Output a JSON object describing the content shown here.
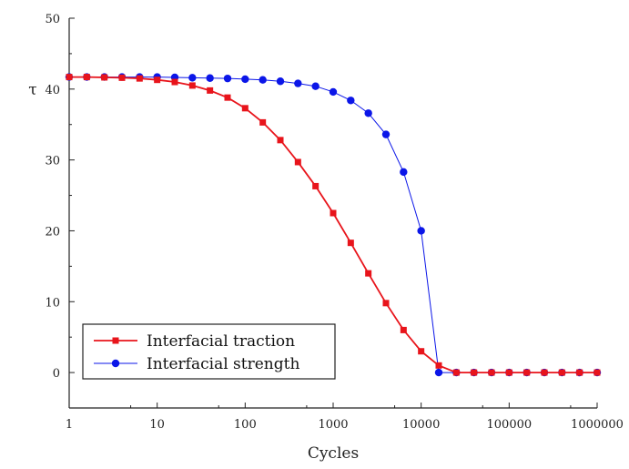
{
  "chart_data": {
    "type": "line",
    "xlabel": "Cycles",
    "ylabel": "τ",
    "x_scale": "log",
    "xlim": [
      1,
      1000000
    ],
    "ylim": [
      -5,
      50
    ],
    "x_ticks": [
      1,
      10,
      100,
      1000,
      10000,
      100000,
      1000000
    ],
    "x_tick_labels": [
      "1",
      "10",
      "100",
      "1000",
      "10000",
      "100000",
      "1000000"
    ],
    "y_ticks": [
      0,
      10,
      20,
      30,
      40,
      50
    ],
    "y_tick_labels": [
      "0",
      "10",
      "20",
      "30",
      "40",
      "50"
    ],
    "grid": false,
    "legend_position": "bottom-left",
    "series": [
      {
        "name": "Interfacial traction",
        "color": "#e8141b",
        "marker": "square",
        "x": [
          1,
          1.585,
          2.512,
          3.981,
          6.31,
          10,
          15.85,
          25.12,
          39.81,
          63.1,
          100,
          158.5,
          251.2,
          398.1,
          631,
          1000,
          1585,
          2512,
          3981,
          6310,
          10000,
          15850,
          25120,
          39810,
          63100,
          100000,
          158500,
          251200,
          398100,
          631000,
          1000000
        ],
        "y": [
          41.7,
          41.7,
          41.65,
          41.6,
          41.5,
          41.3,
          41.0,
          40.5,
          39.8,
          38.8,
          37.3,
          35.3,
          32.8,
          29.7,
          26.3,
          22.5,
          18.3,
          14.0,
          9.8,
          6.0,
          3.0,
          1.0,
          0.0,
          0.0,
          0.0,
          0.0,
          0.0,
          0.0,
          0.0,
          0.0,
          0.0
        ]
      },
      {
        "name": "Interfacial strength",
        "color": "#0b16e8",
        "marker": "circle",
        "x": [
          1,
          1.585,
          2.512,
          3.981,
          6.31,
          10,
          15.85,
          25.12,
          39.81,
          63.1,
          100,
          158.5,
          251.2,
          398.1,
          631,
          1000,
          1585,
          2512,
          3981,
          6310,
          10000,
          15850,
          25120,
          39810,
          63100,
          100000,
          158500,
          251200,
          398100,
          631000,
          1000000
        ],
        "y": [
          41.7,
          41.7,
          41.7,
          41.7,
          41.7,
          41.7,
          41.65,
          41.6,
          41.55,
          41.5,
          41.4,
          41.3,
          41.1,
          40.8,
          40.4,
          39.6,
          38.4,
          36.6,
          33.6,
          28.3,
          20.0,
          0.0,
          0.0,
          0.0,
          0.0,
          0.0,
          0.0,
          0.0,
          0.0,
          0.0,
          0.0
        ]
      }
    ]
  }
}
